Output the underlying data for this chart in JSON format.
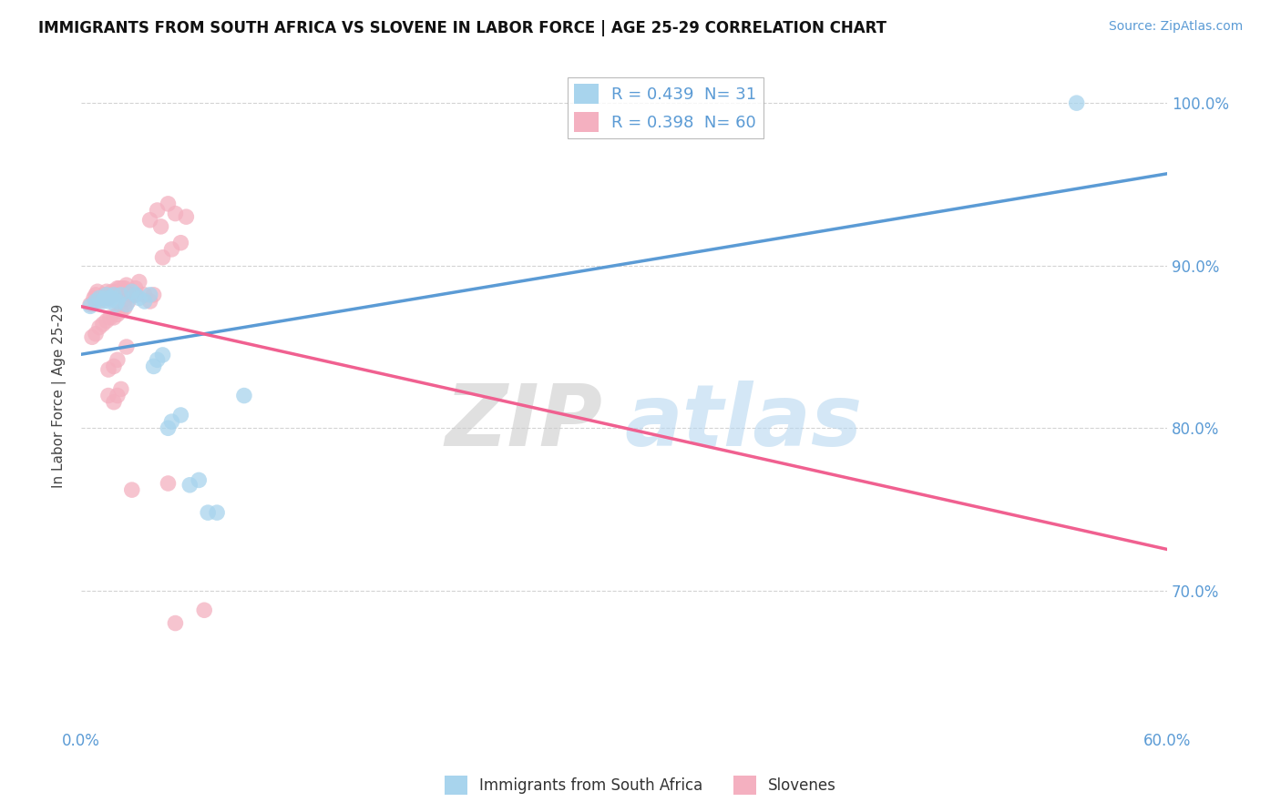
{
  "title": "IMMIGRANTS FROM SOUTH AFRICA VS SLOVENE IN LABOR FORCE | AGE 25-29 CORRELATION CHART",
  "source_text": "Source: ZipAtlas.com",
  "ylabel": "In Labor Force | Age 25-29",
  "xlim": [
    0.0,
    0.6
  ],
  "ylim": [
    0.615,
    1.025
  ],
  "x_ticks": [
    0.0,
    0.1,
    0.2,
    0.3,
    0.4,
    0.5,
    0.6
  ],
  "x_tick_labels": [
    "0.0%",
    "",
    "",
    "",
    "",
    "",
    "60.0%"
  ],
  "y_ticks": [
    0.7,
    0.8,
    0.9,
    1.0
  ],
  "y_tick_labels": [
    "70.0%",
    "80.0%",
    "90.0%",
    "100.0%"
  ],
  "grid_color": "#c8c8c8",
  "background_color": "#ffffff",
  "south_africa_color": "#a8d4ed",
  "slovene_color": "#f4b0c0",
  "south_africa_line_color": "#5b9bd5",
  "slovene_line_color": "#f06090",
  "R_south_africa": 0.439,
  "N_south_africa": 31,
  "R_slovene": 0.398,
  "N_slovene": 60,
  "watermark_zip": "ZIP",
  "watermark_atlas": "atlas",
  "sa_scatter_x": [
    0.005,
    0.008,
    0.01,
    0.012,
    0.013,
    0.014,
    0.015,
    0.016,
    0.017,
    0.018,
    0.019,
    0.02,
    0.022,
    0.025,
    0.028,
    0.03,
    0.032,
    0.035,
    0.038,
    0.04,
    0.042,
    0.045,
    0.048,
    0.05,
    0.055,
    0.06,
    0.065,
    0.07,
    0.075,
    0.09,
    0.55
  ],
  "sa_scatter_y": [
    0.875,
    0.878,
    0.88,
    0.878,
    0.88,
    0.882,
    0.878,
    0.88,
    0.88,
    0.882,
    0.876,
    0.878,
    0.882,
    0.876,
    0.884,
    0.882,
    0.88,
    0.878,
    0.882,
    0.838,
    0.842,
    0.845,
    0.8,
    0.804,
    0.808,
    0.765,
    0.768,
    0.748,
    0.748,
    0.82,
    1.0
  ],
  "sl_scatter_x": [
    0.005,
    0.007,
    0.008,
    0.009,
    0.01,
    0.011,
    0.012,
    0.013,
    0.014,
    0.015,
    0.016,
    0.017,
    0.018,
    0.019,
    0.02,
    0.021,
    0.022,
    0.023,
    0.024,
    0.025,
    0.006,
    0.008,
    0.01,
    0.012,
    0.014,
    0.016,
    0.018,
    0.02,
    0.022,
    0.024,
    0.026,
    0.028,
    0.03,
    0.032,
    0.015,
    0.018,
    0.02,
    0.025,
    0.015,
    0.022,
    0.018,
    0.02,
    0.025,
    0.03,
    0.035,
    0.04,
    0.038,
    0.045,
    0.05,
    0.055,
    0.042,
    0.048,
    0.044,
    0.038,
    0.052,
    0.058,
    0.028,
    0.048,
    0.052,
    0.068
  ],
  "sl_scatter_y": [
    0.876,
    0.88,
    0.882,
    0.884,
    0.878,
    0.88,
    0.88,
    0.882,
    0.884,
    0.88,
    0.882,
    0.884,
    0.882,
    0.884,
    0.886,
    0.886,
    0.884,
    0.886,
    0.886,
    0.888,
    0.856,
    0.858,
    0.862,
    0.864,
    0.866,
    0.868,
    0.868,
    0.87,
    0.872,
    0.874,
    0.878,
    0.882,
    0.886,
    0.89,
    0.836,
    0.838,
    0.842,
    0.85,
    0.82,
    0.824,
    0.816,
    0.82,
    0.88,
    0.882,
    0.882,
    0.882,
    0.878,
    0.905,
    0.91,
    0.914,
    0.934,
    0.938,
    0.924,
    0.928,
    0.932,
    0.93,
    0.762,
    0.766,
    0.68,
    0.688
  ]
}
